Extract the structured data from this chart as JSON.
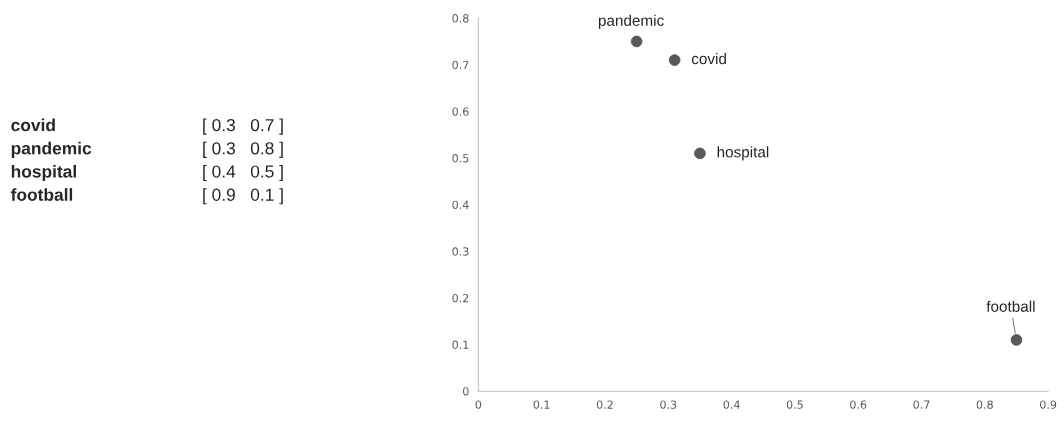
{
  "chart_data": [
    {
      "type": "other",
      "annotations": [
        "covid",
        "[ 0.3   0.7 ]",
        "pandemic",
        "[ 0.3   0.8 ]",
        "hospital",
        "[ 0.4   0.5 ]",
        "football",
        "[ 0.9   0.1 ]"
      ]
    },
    {
      "type": "scatter",
      "x": [
        0.31,
        0.25,
        0.35,
        0.85
      ],
      "values": [
        0.71,
        0.75,
        0.51,
        0.11
      ],
      "color": "#595959",
      "marker": "circle",
      "xlim": [
        0,
        0.9
      ],
      "xticks": [
        0,
        0.1,
        0.2,
        0.3,
        0.4,
        0.5,
        0.6,
        0.7,
        0.8,
        0.9
      ],
      "ylim": [
        0,
        0.8
      ],
      "yticks": [
        0,
        0.1,
        0.2,
        0.3,
        0.4,
        0.5,
        0.6,
        0.7,
        0.8
      ],
      "grid": false,
      "annotations": [
        {
          "text": "covid",
          "x": 0.31,
          "y": 0.71
        },
        {
          "text": "pandemic",
          "x": 0.25,
          "y": 0.75
        },
        {
          "text": "hospital",
          "x": 0.35,
          "y": 0.51
        },
        {
          "text": "football",
          "x": 0.85,
          "y": 0.11
        }
      ]
    }
  ]
}
